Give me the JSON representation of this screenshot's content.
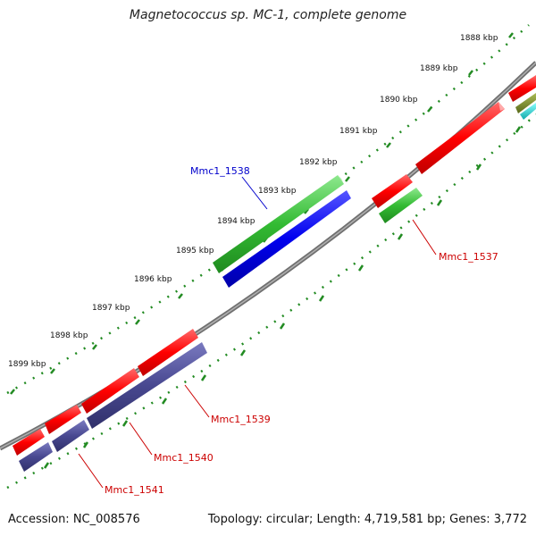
{
  "title": "Magnetococcus sp. MC-1, complete genome",
  "footer": {
    "accession": "Accession: NC_008576",
    "summary": "Topology: circular; Length: 4,719,581 bp; Genes: 3,772"
  },
  "ruler_ticks": [
    {
      "label": "1888 kbp"
    },
    {
      "label": "1889 kbp"
    },
    {
      "label": "1890 kbp"
    },
    {
      "label": "1891 kbp"
    },
    {
      "label": "1892 kbp"
    },
    {
      "label": "1893 kbp"
    },
    {
      "label": "1894 kbp"
    },
    {
      "label": "1895 kbp"
    },
    {
      "label": "1896 kbp"
    },
    {
      "label": "1897 kbp"
    },
    {
      "label": "1898 kbp"
    },
    {
      "label": "1899 kbp"
    }
  ],
  "gene_labels": [
    {
      "name": "Mmc1_1538",
      "color": "#0000cc"
    },
    {
      "name": "Mmc1_1537",
      "color": "#cc0000"
    },
    {
      "name": "Mmc1_1539",
      "color": "#cc0000"
    },
    {
      "name": "Mmc1_1540",
      "color": "#cc0000"
    },
    {
      "name": "Mmc1_1541",
      "color": "#cc0000"
    }
  ],
  "colors": {
    "backbone": "#808080",
    "ruler": "#228b22",
    "cds_red": "#ee0000",
    "rna_green": "#33bb33",
    "gene_blue": "#0000ee",
    "gene_navy": "#484890",
    "gene_olive": "#7a8a2a",
    "gene_cyan": "#22cccc"
  }
}
